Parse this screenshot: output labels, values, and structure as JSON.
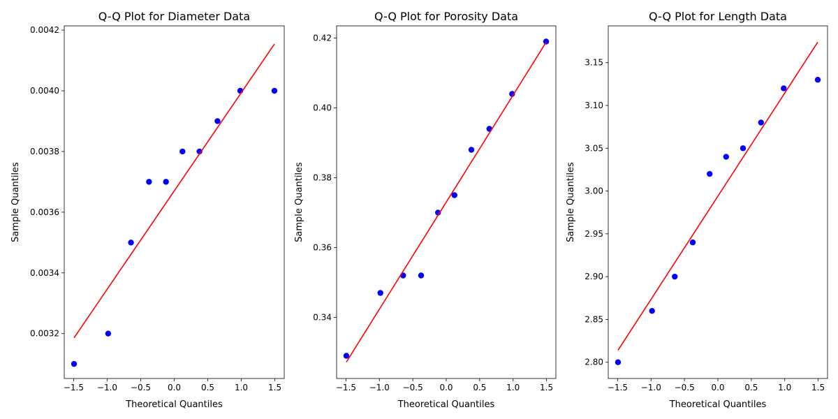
{
  "chart_data": [
    {
      "type": "scatter",
      "title": "Q-Q Plot for Diameter Data",
      "xlabel": "Theoretical Quantiles",
      "ylabel": "Sample Quantiles",
      "xlim": [
        -1.64,
        1.64
      ],
      "ylim": [
        0.003052,
        0.004214
      ],
      "xticks": [
        -1.5,
        -1.0,
        -0.5,
        0.0,
        0.5,
        1.0,
        1.5
      ],
      "xtick_labels": [
        "−1.5",
        "−1.0",
        "−0.5",
        "0.0",
        "0.5",
        "1.0",
        "1.5"
      ],
      "yticks": [
        0.0032,
        0.0034,
        0.0036,
        0.0038,
        0.004,
        0.0042
      ],
      "ytick_labels": [
        "0.0032",
        "0.0034",
        "0.0036",
        "0.0038",
        "0.0040",
        "0.0042"
      ],
      "x": [
        -1.494,
        -0.985,
        -0.645,
        -0.376,
        -0.123,
        0.123,
        0.376,
        0.645,
        0.985,
        1.494
      ],
      "y": [
        0.0031,
        0.0032,
        0.0035,
        0.0037,
        0.0037,
        0.0038,
        0.0038,
        0.0039,
        0.004,
        0.004
      ],
      "fit_line": {
        "x": [
          -1.494,
          1.494
        ],
        "y": [
          0.003186,
          0.004154
        ]
      },
      "grid": false,
      "marker_color": "#0000ff",
      "line_color": "#ff0000"
    },
    {
      "type": "scatter",
      "title": "Q-Q Plot for Porosity Data",
      "xlabel": "Theoretical Quantiles",
      "ylabel": "Sample Quantiles",
      "xlim": [
        -1.64,
        1.64
      ],
      "ylim": [
        0.3225,
        0.4235
      ],
      "xticks": [
        -1.5,
        -1.0,
        -0.5,
        0.0,
        0.5,
        1.0,
        1.5
      ],
      "xtick_labels": [
        "−1.5",
        "−1.0",
        "−0.5",
        "0.0",
        "0.5",
        "1.0",
        "1.5"
      ],
      "yticks": [
        0.34,
        0.36,
        0.38,
        0.4,
        0.42
      ],
      "ytick_labels": [
        "0.34",
        "0.36",
        "0.38",
        "0.40",
        "0.42"
      ],
      "x": [
        -1.494,
        -0.985,
        -0.645,
        -0.376,
        -0.123,
        0.123,
        0.376,
        0.645,
        0.985,
        1.494
      ],
      "y": [
        0.329,
        0.347,
        0.352,
        0.352,
        0.37,
        0.375,
        0.388,
        0.394,
        0.404,
        0.419
      ],
      "fit_line": {
        "x": [
          -1.494,
          1.494
        ],
        "y": [
          0.3272,
          0.4188
        ]
      },
      "grid": false,
      "marker_color": "#0000ff",
      "line_color": "#ff0000"
    },
    {
      "type": "scatter",
      "title": "Q-Q Plot for Length Data",
      "xlabel": "Theoretical Quantiles",
      "ylabel": "Sample Quantiles",
      "xlim": [
        -1.64,
        1.64
      ],
      "ylim": [
        2.781,
        3.193
      ],
      "xticks": [
        -1.5,
        -1.0,
        -0.5,
        0.0,
        0.5,
        1.0,
        1.5
      ],
      "xtick_labels": [
        "−1.5",
        "−1.0",
        "−0.5",
        "0.0",
        "0.5",
        "1.0",
        "1.5"
      ],
      "yticks": [
        2.8,
        2.85,
        2.9,
        2.95,
        3.0,
        3.05,
        3.1,
        3.15
      ],
      "ytick_labels": [
        "2.80",
        "2.85",
        "2.90",
        "2.95",
        "3.00",
        "3.05",
        "3.10",
        "3.15"
      ],
      "x": [
        -1.494,
        -0.985,
        -0.645,
        -0.376,
        -0.123,
        0.123,
        0.376,
        0.645,
        0.985,
        1.494
      ],
      "y": [
        2.8,
        2.86,
        2.9,
        2.94,
        3.02,
        3.04,
        3.05,
        3.08,
        3.12,
        3.13
      ],
      "fit_line": {
        "x": [
          -1.494,
          1.494
        ],
        "y": [
          2.814,
          3.174
        ]
      },
      "grid": false,
      "marker_color": "#0000ff",
      "line_color": "#ff0000"
    }
  ]
}
